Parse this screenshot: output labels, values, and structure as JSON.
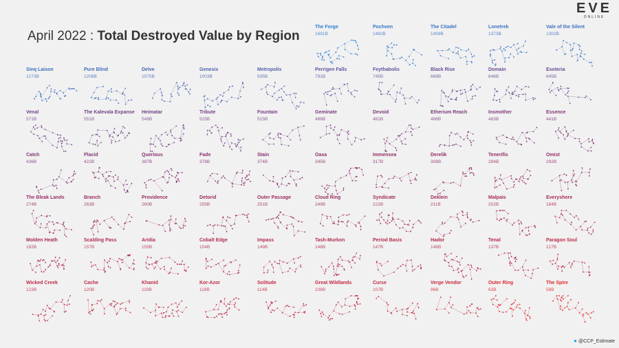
{
  "title": {
    "lead": "April 2022 : ",
    "main": "Total Destroyed Value by Region"
  },
  "logo": {
    "word": "EVE",
    "sub": "ONLINE"
  },
  "credit": "@CCP_Estimate",
  "chart_data": {
    "type": "small-multiples",
    "unit": "B",
    "regions": [
      {
        "name": "The Forge",
        "label": "1691B",
        "value": 1691
      },
      {
        "name": "Pochven",
        "label": "1482B",
        "value": 1482
      },
      {
        "name": "The Citadel",
        "label": "1409B",
        "value": 1409
      },
      {
        "name": "Lonetrek",
        "label": "1373B",
        "value": 1373
      },
      {
        "name": "Vale of the Silent",
        "label": "1302B",
        "value": 1302
      },
      {
        "name": "Sinq Laison",
        "label": "1273B",
        "value": 1273
      },
      {
        "name": "Pure Blind",
        "label": "1206B",
        "value": 1206
      },
      {
        "name": "Delve",
        "label": "1075B",
        "value": 1075
      },
      {
        "name": "Genesis",
        "label": "1003B",
        "value": 1003
      },
      {
        "name": "Metropolis",
        "label": "935B",
        "value": 935
      },
      {
        "name": "Perrigen Falls",
        "label": "791B",
        "value": 791
      },
      {
        "name": "Feythabolis",
        "label": "745B",
        "value": 745
      },
      {
        "name": "Black Rise",
        "label": "668B",
        "value": 668
      },
      {
        "name": "Domain",
        "label": "646B",
        "value": 646
      },
      {
        "name": "Esoteria",
        "label": "645B",
        "value": 645
      },
      {
        "name": "Venal",
        "label": "571B",
        "value": 571
      },
      {
        "name": "The Kalevala Expanse",
        "label": "551B",
        "value": 551
      },
      {
        "name": "Heimatar",
        "label": "549B",
        "value": 549
      },
      {
        "name": "Tribute",
        "label": "525B",
        "value": 525
      },
      {
        "name": "Fountain",
        "label": "515B",
        "value": 515
      },
      {
        "name": "Geminate",
        "label": "486B",
        "value": 486
      },
      {
        "name": "Devoid",
        "label": "481B",
        "value": 481
      },
      {
        "name": "Etherium Reach",
        "label": "466B",
        "value": 466
      },
      {
        "name": "Insmother",
        "label": "463B",
        "value": 463
      },
      {
        "name": "Essence",
        "label": "441B",
        "value": 441
      },
      {
        "name": "Catch",
        "label": "436B",
        "value": 436
      },
      {
        "name": "Placid",
        "label": "422B",
        "value": 422
      },
      {
        "name": "Querious",
        "label": "387B",
        "value": 387
      },
      {
        "name": "Fade",
        "label": "378B",
        "value": 378
      },
      {
        "name": "Stain",
        "label": "374B",
        "value": 374
      },
      {
        "name": "Oasa",
        "label": "345B",
        "value": 345
      },
      {
        "name": "Immensea",
        "label": "317B",
        "value": 317
      },
      {
        "name": "Derelik",
        "label": "308B",
        "value": 308
      },
      {
        "name": "Tenerifis",
        "label": "294B",
        "value": 294
      },
      {
        "name": "Omist",
        "label": "292B",
        "value": 292
      },
      {
        "name": "The Bleak Lands",
        "label": "274B",
        "value": 274
      },
      {
        "name": "Branch",
        "label": "263B",
        "value": 263
      },
      {
        "name": "Providence",
        "label": "260B",
        "value": 260
      },
      {
        "name": "Detorid",
        "label": "255B",
        "value": 255
      },
      {
        "name": "Outer Passage",
        "label": "251B",
        "value": 251
      },
      {
        "name": "Cloud Ring",
        "label": "249B",
        "value": 249
      },
      {
        "name": "Syndicate",
        "label": "222B",
        "value": 222
      },
      {
        "name": "Deklein",
        "label": "211B",
        "value": 211
      },
      {
        "name": "Malpais",
        "label": "202B",
        "value": 202
      },
      {
        "name": "Everyshore",
        "label": "184B",
        "value": 184
      },
      {
        "name": "Molden Heath",
        "label": "182B",
        "value": 182
      },
      {
        "name": "Scalding Pass",
        "label": "157B",
        "value": 157
      },
      {
        "name": "Aridia",
        "label": "155B",
        "value": 155
      },
      {
        "name": "Cobalt Edge",
        "label": "154B",
        "value": 154
      },
      {
        "name": "Impass",
        "label": "149B",
        "value": 149
      },
      {
        "name": "Tash-Murkon",
        "label": "148B",
        "value": 148
      },
      {
        "name": "Period Basis",
        "label": "147B",
        "value": 147
      },
      {
        "name": "Hador",
        "label": "146B",
        "value": 146
      },
      {
        "name": "Tenal",
        "label": "137B",
        "value": 137
      },
      {
        "name": "Paragon Soul",
        "label": "127B",
        "value": 127
      },
      {
        "name": "Wicked Creek",
        "label": "123B",
        "value": 123
      },
      {
        "name": "Cache",
        "label": "120B",
        "value": 120
      },
      {
        "name": "Khanid",
        "label": "119B",
        "value": 119
      },
      {
        "name": "Kor-Azor",
        "label": "118B",
        "value": 118
      },
      {
        "name": "Solitude",
        "label": "114B",
        "value": 114
      },
      {
        "name": "Great Wildlands",
        "label": "108B",
        "value": 108
      },
      {
        "name": "Curse",
        "label": "107B",
        "value": 107
      },
      {
        "name": "Verge Vendor",
        "label": "96B",
        "value": 96
      },
      {
        "name": "Outer Ring",
        "label": "63B",
        "value": 63
      },
      {
        "name": "The Spire",
        "label": "58B",
        "value": 58
      }
    ],
    "color_scale": {
      "high": "#2f7fd1",
      "mid": "#8a2f6e",
      "low": "#e0282e"
    }
  }
}
